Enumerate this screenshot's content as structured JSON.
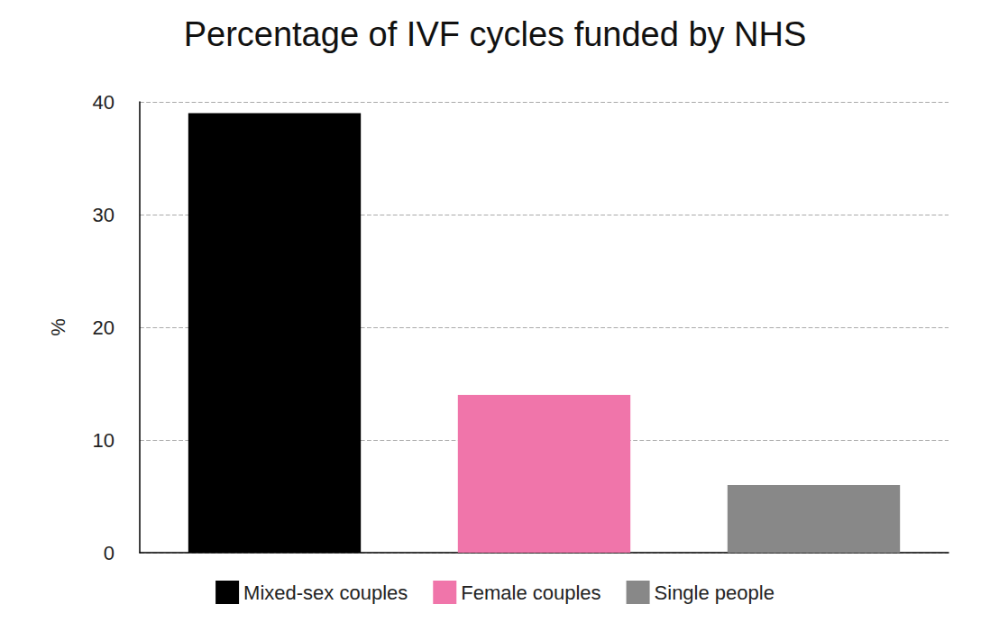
{
  "chart_data": {
    "type": "bar",
    "title": "Percentage of IVF cycles funded by NHS",
    "ylabel": "%",
    "categories": [
      "Mixed-sex couples",
      "Female couples",
      "Single people"
    ],
    "values": [
      39,
      14,
      6
    ],
    "colors": [
      "#000000",
      "#f075aa",
      "#888888"
    ],
    "ylim": [
      0,
      40
    ],
    "yticks": [
      0,
      10,
      20,
      30,
      40
    ],
    "grid": true,
    "legend": "bottom",
    "tick_labels": "y"
  }
}
